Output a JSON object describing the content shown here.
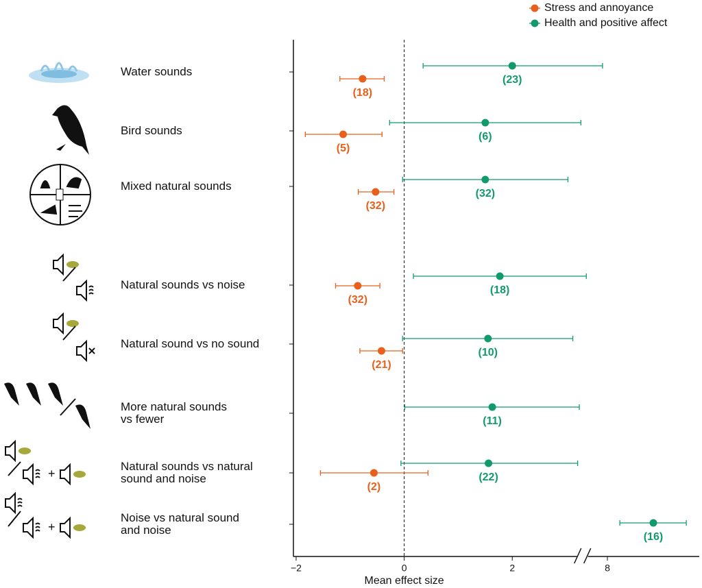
{
  "chart_data": {
    "type": "forest",
    "categories": [
      "Water sounds",
      "Bird sounds",
      "Mixed natural sounds",
      "Natural sounds vs noise",
      "Natural sound vs no sound",
      "More natural sounds\nvs fewer",
      "Natural sounds vs natural\nsound and noise",
      "Noise vs natural sound\nand noise"
    ],
    "series": [
      {
        "name": "Stress and annoyance",
        "color": "#e8601c",
        "values": [
          -0.77,
          -1.13,
          -0.53,
          -0.86,
          -0.42,
          null,
          -0.56,
          null
        ],
        "lower": [
          -1.19,
          -1.83,
          -0.85,
          -1.27,
          -0.82,
          null,
          -1.55,
          null
        ],
        "upper": [
          -0.37,
          -0.41,
          -0.19,
          -0.45,
          -0.03,
          null,
          0.44,
          null
        ],
        "n_labels": [
          "(18)",
          "(5)",
          "(32)",
          "(32)",
          "(21)",
          null,
          "(2)",
          null
        ]
      },
      {
        "name": "Health and positive affect",
        "color": "#129a6e",
        "values": [
          2.0,
          1.5,
          1.5,
          1.77,
          1.55,
          1.63,
          1.56,
          8.85
        ],
        "lower": [
          0.35,
          -0.27,
          -0.03,
          0.17,
          -0.03,
          0.01,
          -0.06,
          8.23
        ],
        "upper": [
          3.67,
          3.27,
          3.03,
          3.37,
          3.12,
          3.24,
          3.21,
          9.46
        ],
        "n_labels": [
          "(23)",
          "(6)",
          "(32)",
          "(18)",
          "(10)",
          "(11)",
          "(22)",
          "(16)"
        ]
      }
    ],
    "x_label": "Mean effect size",
    "xlim": [
      -2.05,
      9.7
    ],
    "x_break": [
      3.3,
      7.54
    ],
    "xticks": [
      {
        "value": -2,
        "label": "−2"
      },
      0,
      2,
      8
    ],
    "reference_line": 0
  }
}
